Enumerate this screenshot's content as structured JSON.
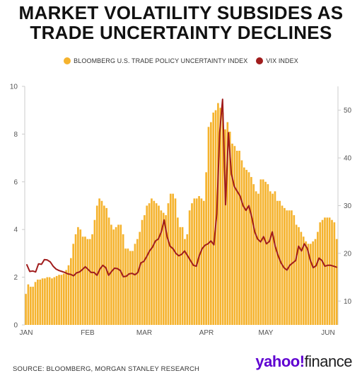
{
  "title_lines": [
    "MARKET VOLATILITY SUBSIDES AS",
    "TRADE UNCERTAINTY DECLINES"
  ],
  "source": "SOURCE: BLOOMBERG, MORGAN STANLEY RESEARCH",
  "logo": {
    "brand": "yahoo!",
    "product": "finance"
  },
  "colors": {
    "bars": "#f5b32e",
    "line": "#a01c1c",
    "axis_text": "#555555",
    "grid": "#cccccc"
  },
  "chart_data": {
    "type": "bar",
    "legend_position": "top-center",
    "x_tick_labels": [
      "JAN",
      "FEB",
      "MAR",
      "APR",
      "MAY",
      "JUN"
    ],
    "left_axis": {
      "ylim": [
        0,
        10
      ],
      "ticks": [
        0,
        2,
        4,
        6,
        8,
        10
      ]
    },
    "right_axis": {
      "ylim": [
        5,
        55
      ],
      "ticks": [
        10,
        20,
        30,
        40,
        50
      ]
    },
    "series": [
      {
        "name": "BLOOMBERG U.S. TRADE POLICY UNCERTAINTY INDEX",
        "type": "bar",
        "axis": "left",
        "values": [
          1.3,
          1.7,
          1.6,
          1.6,
          1.8,
          1.9,
          1.9,
          1.95,
          1.95,
          2.0,
          2.0,
          1.95,
          2.0,
          2.05,
          2.1,
          2.1,
          2.15,
          2.3,
          2.5,
          2.8,
          3.4,
          3.8,
          4.1,
          4.0,
          3.7,
          3.7,
          3.6,
          3.6,
          3.8,
          4.4,
          5.0,
          5.3,
          5.2,
          5.0,
          4.9,
          4.5,
          4.2,
          4.0,
          4.1,
          4.2,
          4.2,
          3.8,
          3.2,
          3.2,
          3.1,
          3.1,
          3.4,
          3.6,
          3.9,
          4.4,
          4.6,
          5.0,
          5.1,
          5.3,
          5.2,
          5.1,
          5.0,
          4.8,
          4.7,
          4.6,
          5.1,
          5.5,
          5.5,
          5.3,
          4.5,
          4.1,
          4.1,
          3.6,
          3.8,
          4.8,
          5.1,
          5.3,
          5.3,
          5.4,
          5.3,
          5.2,
          6.4,
          8.3,
          8.5,
          8.9,
          9.0,
          9.3,
          9.1,
          8.9,
          8.2,
          8.5,
          8.1,
          7.6,
          7.5,
          7.3,
          7.3,
          6.9,
          6.6,
          6.5,
          6.4,
          6.2,
          5.9,
          5.6,
          5.5,
          6.1,
          6.1,
          6.0,
          5.9,
          5.6,
          5.5,
          5.6,
          5.2,
          5.2,
          5.0,
          4.9,
          4.8,
          4.8,
          4.8,
          4.6,
          4.2,
          4.1,
          3.9,
          3.7,
          3.5,
          3.4,
          3.4,
          3.5,
          3.6,
          3.9,
          4.3,
          4.4,
          4.5,
          4.5,
          4.5,
          4.4,
          4.3,
          3.6
        ]
      },
      {
        "name": "VIX INDEX",
        "type": "line",
        "axis": "right",
        "values": [
          17.6,
          16.2,
          16.3,
          16.1,
          17.8,
          17.7,
          18.7,
          18.6,
          18.2,
          17.3,
          16.7,
          16.4,
          16.2,
          16.0,
          15.7,
          15.6,
          15.3,
          15.9,
          16.1,
          16.6,
          17.2,
          16.6,
          16.0,
          16.0,
          15.4,
          16.7,
          17.5,
          17.0,
          15.4,
          16.2,
          16.9,
          16.8,
          16.4,
          15.1,
          15.2,
          15.7,
          15.8,
          15.5,
          16.0,
          18.0,
          18.3,
          19.3,
          20.5,
          21.3,
          22.6,
          23.0,
          24.5,
          27.0,
          23.5,
          21.5,
          21.0,
          20.0,
          19.5,
          19.8,
          20.5,
          19.5,
          18.5,
          17.5,
          17.3,
          19.5,
          21.0,
          21.7,
          22.0,
          22.6,
          21.8,
          28.3,
          45.3,
          52.3,
          30.2,
          45.3,
          36.7,
          34.0,
          33.0,
          32.0,
          30.0,
          29.0,
          30.0,
          27.5,
          24.5,
          23.0,
          22.4,
          23.5,
          22.0,
          22.5,
          24.5,
          21.5,
          19.5,
          18.0,
          17.0,
          16.5,
          17.5,
          18.0,
          18.5,
          21.5,
          20.5,
          22.0,
          21.0,
          18.6,
          17.0,
          17.4,
          19.0,
          18.5,
          17.3,
          17.5,
          17.5,
          17.3,
          17.1
        ]
      }
    ]
  }
}
